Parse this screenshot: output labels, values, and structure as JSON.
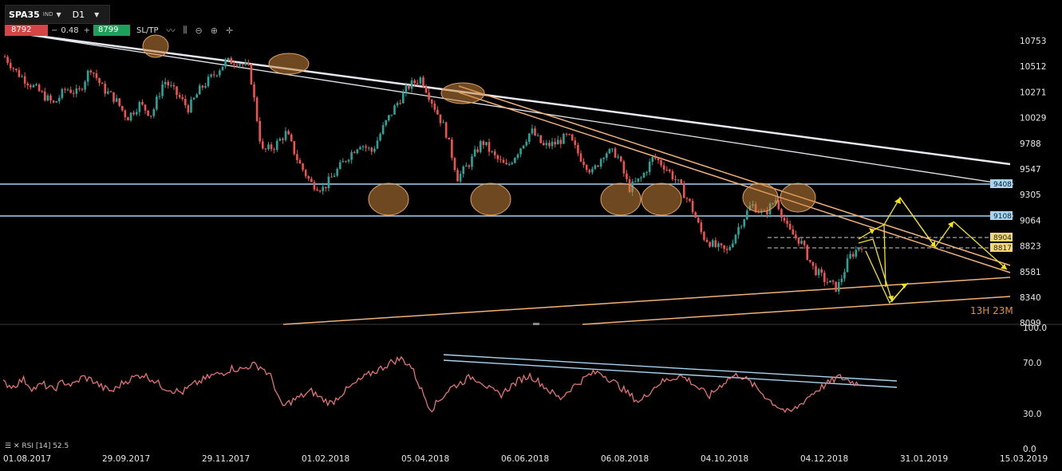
{
  "toolbar": {
    "symbol": "SPA35",
    "symbol_tag": "IND",
    "timeframe": "D1",
    "sell_price": "8792",
    "minus": "−",
    "spread": "0.48",
    "plus": "+",
    "buy_price": "8799",
    "sltp_label": "SL/TP",
    "tools": [
      "line-chart-icon",
      "bar-chart-icon",
      "zoom-out-icon",
      "zoom-in-icon",
      "crosshair-icon"
    ]
  },
  "price_axis": {
    "ticks": [
      "10753",
      "10512",
      "10271",
      "10029",
      "9788",
      "9547",
      "9305",
      "9064",
      "8823",
      "8581",
      "8340",
      "8099"
    ],
    "level_labels": [
      "9408",
      "9108",
      "8904",
      "8817"
    ]
  },
  "countdown": "13H 23M",
  "rsi_panel": {
    "label": "RSI [14] 52.5",
    "ticks": [
      "100.0",
      "70.0",
      "30.0",
      "0.0"
    ]
  },
  "time_axis": {
    "labels": [
      "01.08.2017",
      "29.09.2017",
      "29.11.2017",
      "01.02.2018",
      "05.04.2018",
      "06.06.2018",
      "06.08.2018",
      "04.10.2018",
      "04.12.2018",
      "31.01.2019",
      "15.03.2019"
    ]
  },
  "colors": {
    "up": "#26a69a",
    "down": "#ef5350",
    "rsi": "#e57373",
    "trend_white": "#e6e9f0",
    "trend_orange": "#f0b27a",
    "horizontal": "#a8d4f0",
    "arrows": "#f4e41a",
    "ellipse_fill": "#c8843c",
    "countdown": "#e0913a"
  },
  "chart_data": {
    "type": "candlestick",
    "note": "approximate close path and RSI(14) values read from the chart",
    "close_path": [
      10600,
      10450,
      10350,
      10250,
      10150,
      10300,
      10250,
      10500,
      10300,
      10200,
      10020,
      10150,
      10050,
      10380,
      10250,
      10110,
      10300,
      10420,
      10550,
      10560,
      10480,
      9700,
      9750,
      9880,
      9600,
      9400,
      9350,
      9500,
      9650,
      9780,
      9700,
      9950,
      10150,
      10320,
      10400,
      10150,
      9900,
      9450,
      9600,
      9800,
      9650,
      9550,
      9720,
      9900,
      9750,
      9780,
      9850,
      9650,
      9500,
      9700,
      9680,
      9350,
      9450,
      9650,
      9550,
      9400,
      9200,
      8900,
      8800,
      8750,
      9000,
      9200,
      9100,
      9250,
      8950,
      8850,
      8600,
      8480,
      8400,
      8700,
      8820
    ],
    "rsi_values": [
      55,
      52,
      58,
      50,
      54,
      49,
      56,
      53,
      60,
      57,
      51,
      48,
      55,
      59,
      62,
      58,
      52,
      49,
      47,
      53,
      57,
      61,
      63,
      67,
      66,
      70,
      68,
      59,
      35,
      40,
      44,
      48,
      42,
      38,
      46,
      52,
      58,
      63,
      67,
      72,
      75,
      69,
      50,
      33,
      42,
      51,
      55,
      60,
      57,
      49,
      45,
      52,
      58,
      61,
      55,
      48,
      42,
      50,
      56,
      62,
      64,
      58,
      52,
      45,
      39,
      48,
      55,
      58,
      61,
      57,
      50,
      44,
      52,
      59,
      62,
      56,
      49,
      41,
      35,
      30,
      36,
      44,
      50,
      55,
      60,
      57,
      54
    ],
    "price_levels": [
      9408,
      9108,
      8904,
      8817
    ],
    "rsi_levels": [
      100,
      70,
      30,
      0
    ]
  }
}
